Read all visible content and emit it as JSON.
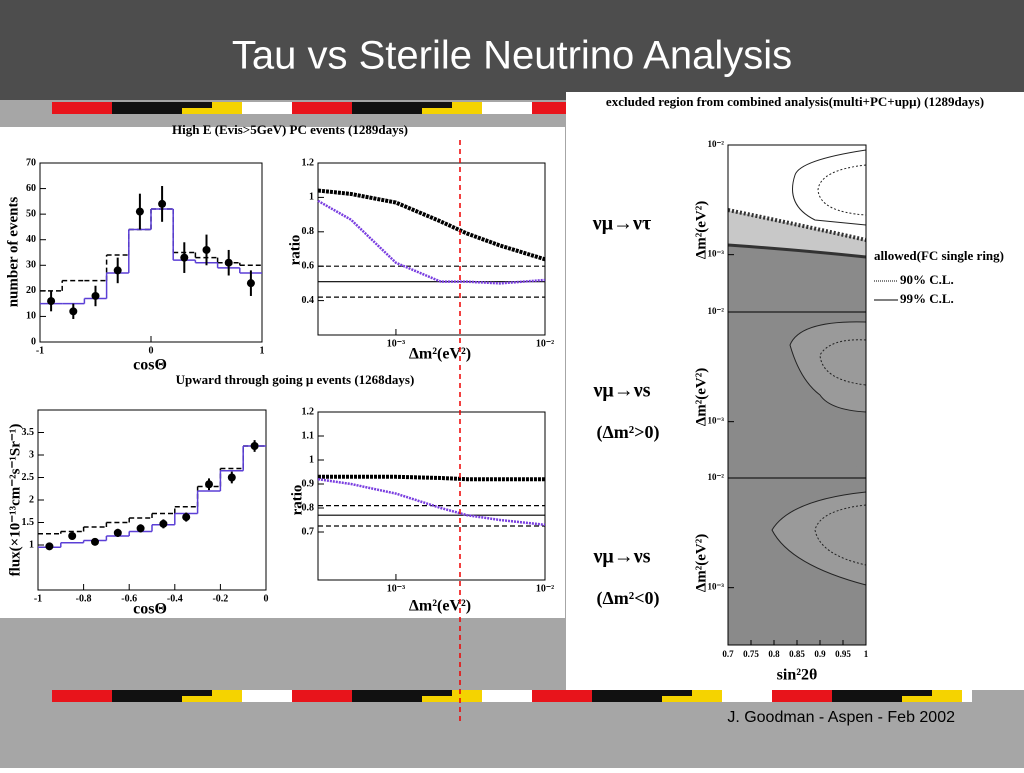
{
  "title": "Tau vs Sterile Neutrino Analysis",
  "footer": "J. Goodman   -  Aspen - Feb 2002",
  "chart_data": [
    {
      "type": "line",
      "title": "High E (Evis>5GeV) PC events (1289days)",
      "xlabel": "cosΘ",
      "ylabel": "number of events",
      "xlim": [
        -1,
        1
      ],
      "ylim": [
        0,
        70
      ],
      "xticks": [
        -1,
        0,
        1
      ],
      "yticks": [
        0,
        10,
        20,
        30,
        40,
        50,
        60,
        70
      ],
      "series": [
        {
          "kind": "step",
          "color": "#000000",
          "dash": true,
          "bins": [
            -1,
            -0.8,
            -0.6,
            -0.4,
            -0.2,
            0,
            0.2,
            0.4,
            0.6,
            0.8,
            1
          ],
          "values": [
            20,
            24,
            24,
            34,
            44,
            52,
            35,
            33,
            31,
            30
          ]
        },
        {
          "kind": "step",
          "color": "#5b3fd6",
          "bins": [
            -1,
            -0.8,
            -0.6,
            -0.4,
            -0.2,
            0,
            0.2,
            0.4,
            0.6,
            0.8,
            1
          ],
          "values": [
            15,
            15,
            17,
            27,
            44,
            52,
            32,
            31,
            29,
            27
          ]
        },
        {
          "kind": "points",
          "color": "#000000",
          "x": [
            -0.9,
            -0.7,
            -0.5,
            -0.3,
            -0.1,
            0.1,
            0.3,
            0.5,
            0.7,
            0.9
          ],
          "values": [
            16,
            12,
            18,
            28,
            51,
            54,
            33,
            36,
            31,
            23
          ],
          "errors": [
            4,
            3,
            4,
            5,
            7,
            7,
            6,
            6,
            5,
            5
          ]
        }
      ]
    },
    {
      "type": "line",
      "xlabel": "Δm²(eV²)",
      "ylabel": "ratio",
      "log_x": true,
      "xlim": [
        0.0003,
        0.01
      ],
      "ylim": [
        0.2,
        1.2
      ],
      "xticks": [
        {
          "value": 0.001,
          "label": "10⁻³"
        },
        {
          "value": 0.01,
          "label": "10⁻²"
        }
      ],
      "yticks": [
        0.4,
        0.6,
        0.8,
        1,
        1.2
      ],
      "series": [
        {
          "kind": "hline",
          "color": "#000000",
          "dash": true,
          "values": [
            0.6,
            0.42
          ]
        },
        {
          "kind": "hline",
          "color": "#000000",
          "values": [
            0.51
          ]
        },
        {
          "kind": "line",
          "color": "#000000",
          "marker": "square",
          "x": [
            0.0003,
            0.0005,
            0.001,
            0.002,
            0.003,
            0.005,
            0.01
          ],
          "values": [
            1.04,
            1.02,
            0.97,
            0.86,
            0.79,
            0.72,
            0.64
          ]
        },
        {
          "kind": "line",
          "color": "#7a3fe0",
          "marker": "dot",
          "x": [
            0.0003,
            0.0005,
            0.001,
            0.002,
            0.003,
            0.005,
            0.01
          ],
          "values": [
            0.98,
            0.87,
            0.62,
            0.51,
            0.51,
            0.5,
            0.52
          ]
        }
      ]
    },
    {
      "type": "line",
      "title": "Upward through going μ events (1268days)",
      "xlabel": "cosΘ",
      "ylabel": "flux(×10⁻¹³cm⁻²s⁻¹Sr⁻¹)",
      "xlim": [
        -1,
        0
      ],
      "ylim": [
        0,
        4
      ],
      "xticks": [
        -1,
        -0.8,
        -0.6,
        -0.4,
        -0.2,
        0
      ],
      "yticks": [
        1,
        1.5,
        2,
        2.5,
        3,
        3.5
      ],
      "series": [
        {
          "kind": "step",
          "color": "#000000",
          "dash": true,
          "bins": [
            -1,
            -0.9,
            -0.8,
            -0.7,
            -0.6,
            -0.5,
            -0.4,
            -0.3,
            -0.2,
            -0.1,
            0
          ],
          "values": [
            1.25,
            1.3,
            1.4,
            1.5,
            1.6,
            1.7,
            1.85,
            2.3,
            2.7,
            3.2
          ]
        },
        {
          "kind": "step",
          "color": "#5b3fd6",
          "bins": [
            -1,
            -0.9,
            -0.8,
            -0.7,
            -0.6,
            -0.5,
            -0.4,
            -0.3,
            -0.2,
            -0.1,
            0
          ],
          "values": [
            0.95,
            1.05,
            1.1,
            1.2,
            1.3,
            1.45,
            1.7,
            2.2,
            2.65,
            3.2
          ]
        },
        {
          "kind": "points",
          "color": "#000000",
          "x": [
            -0.95,
            -0.85,
            -0.75,
            -0.65,
            -0.55,
            -0.45,
            -0.35,
            -0.25,
            -0.15,
            -0.05
          ],
          "values": [
            0.97,
            1.2,
            1.07,
            1.27,
            1.37,
            1.47,
            1.62,
            2.35,
            2.5,
            3.2
          ],
          "errors": [
            0.08,
            0.08,
            0.08,
            0.09,
            0.09,
            0.1,
            0.1,
            0.13,
            0.13,
            0.13
          ]
        }
      ]
    },
    {
      "type": "line",
      "xlabel": "Δm²(eV²)",
      "ylabel": "ratio",
      "log_x": true,
      "xlim": [
        0.0003,
        0.01
      ],
      "ylim": [
        0.5,
        1.2
      ],
      "xticks": [
        {
          "value": 0.001,
          "label": "10⁻³"
        },
        {
          "value": 0.01,
          "label": "10⁻²"
        }
      ],
      "yticks": [
        0.7,
        0.8,
        0.9,
        1,
        1.1,
        1.2
      ],
      "series": [
        {
          "kind": "hline",
          "color": "#000000",
          "dash": true,
          "values": [
            0.81,
            0.725
          ]
        },
        {
          "kind": "hline",
          "color": "#000000",
          "values": [
            0.77
          ]
        },
        {
          "kind": "line",
          "color": "#000000",
          "marker": "square",
          "x": [
            0.0003,
            0.0005,
            0.001,
            0.002,
            0.003,
            0.005,
            0.01
          ],
          "values": [
            0.93,
            0.93,
            0.93,
            0.925,
            0.92,
            0.92,
            0.92
          ]
        },
        {
          "kind": "line",
          "color": "#7a3fe0",
          "marker": "dot",
          "x": [
            0.0003,
            0.0005,
            0.001,
            0.002,
            0.003,
            0.005,
            0.01
          ],
          "values": [
            0.92,
            0.9,
            0.86,
            0.8,
            0.77,
            0.75,
            0.73
          ]
        }
      ]
    }
  ],
  "right_panel": {
    "title": "excluded region from combined analysis(multi+PC+upμ) (1289days)",
    "ylabel": "Δm²(eV²)",
    "xlabel": "sin²2θ",
    "xlim": [
      0.7,
      1
    ],
    "ylim": [
      0.0003,
      0.01
    ],
    "xticks": [
      0.7,
      0.75,
      0.8,
      0.85,
      0.9,
      0.95,
      1
    ],
    "yticks": [
      {
        "value": 0.01,
        "label": "10⁻²"
      },
      {
        "value": 0.001,
        "label": "10⁻³"
      }
    ],
    "panels": [
      {
        "labels": [
          "νμ→ντ"
        ]
      },
      {
        "labels": [
          "νμ→νs",
          "(Δm²>0)"
        ]
      },
      {
        "labels": [
          "νμ→νs",
          "(Δm²<0)"
        ]
      }
    ],
    "legend": {
      "title": "allowed(FC single ring)",
      "items": [
        "90% C.L.",
        "99% C.L."
      ]
    }
  }
}
